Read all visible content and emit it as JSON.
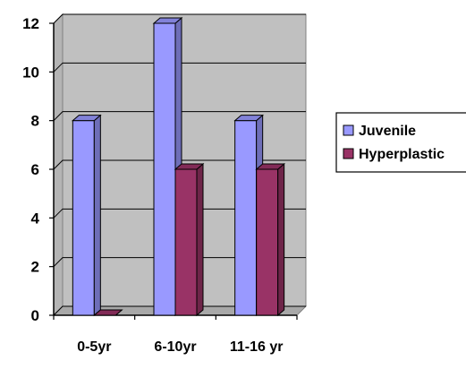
{
  "chart_data": {
    "type": "bar",
    "categories": [
      "0-5yr",
      "6-10yr",
      "11-16 yr"
    ],
    "series": [
      {
        "name": "Juvenile",
        "values": [
          8,
          12,
          8
        ],
        "color": "#9999FF"
      },
      {
        "name": "Hyperplastic",
        "values": [
          0,
          6,
          6
        ],
        "color": "#993366"
      }
    ],
    "ylim": [
      0,
      12
    ],
    "yticks": [
      0,
      2,
      4,
      6,
      8,
      10,
      12
    ],
    "grid": true,
    "legend_position": "right",
    "style": "3d-clustered-column"
  }
}
